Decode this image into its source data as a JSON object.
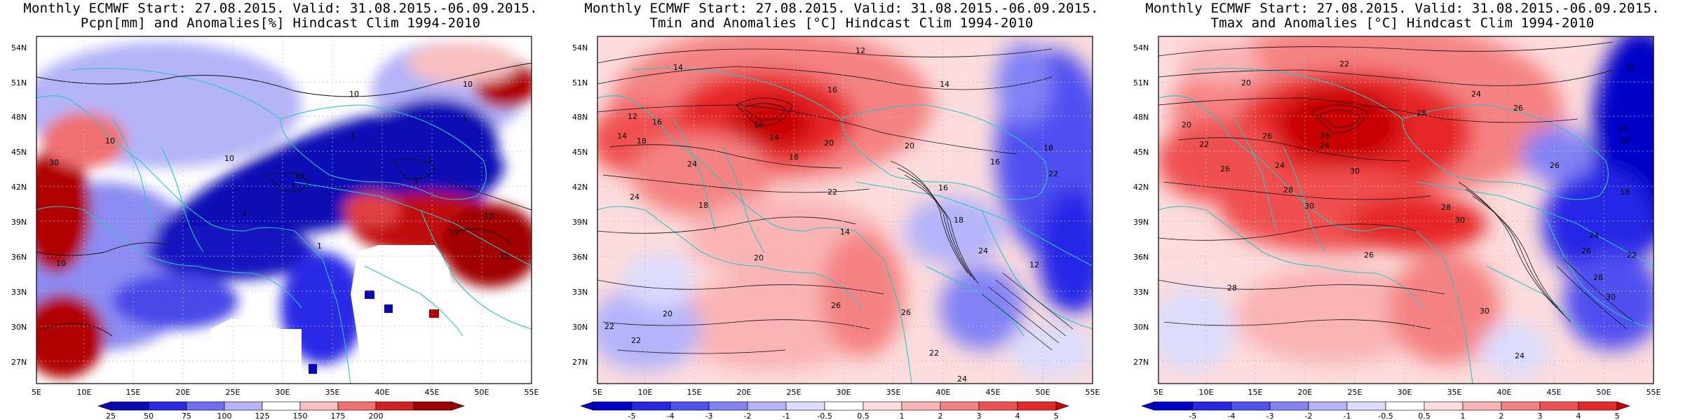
{
  "panels": [
    {
      "title_line1": "Monthly ECMWF Start: 27.08.2015. Valid: 31.08.2015.-06.09.2015.",
      "title_line2": "Pcpn[mm] and Anomalies[%] Hindcast Clim 1994-2010",
      "variable": "precipitation",
      "colorbar_labels": [
        "25",
        "50",
        "75",
        "100",
        "125",
        "150",
        "175",
        "200"
      ],
      "colorbar_colors": [
        "#0a0ab4",
        "#2a2ae6",
        "#6e6ef0",
        "#b4b4f8",
        "#ffffff",
        "#f8c0c0",
        "#f07070",
        "#d42020",
        "#a00000"
      ],
      "contour_labels": [
        "10",
        "30",
        "10",
        "10",
        "10",
        "1",
        "1",
        "1",
        "1",
        "1",
        "10",
        "10",
        "10",
        "10",
        "30",
        "1",
        "1"
      ]
    },
    {
      "title_line1": "Monthly ECMWF Start: 27.08.2015. Valid: 31.08.2015.-06.09.2015.",
      "title_line2": "Tmin and Anomalies [°C] Hindcast Clim 1994-2010",
      "variable": "tmin",
      "colorbar_labels": [
        "-5",
        "-4",
        "-3",
        "-2",
        "-1",
        "-0.5",
        "0.5",
        "1",
        "2",
        "3",
        "4",
        "5"
      ],
      "colorbar_colors": [
        "#0000c8",
        "#2828e6",
        "#5050f0",
        "#8282f5",
        "#b4b4fa",
        "#dcdcfc",
        "#ffffff",
        "#fcdcdc",
        "#fab4b4",
        "#f58282",
        "#f05050",
        "#e62828",
        "#c80000"
      ],
      "contour_labels": [
        "12",
        "14",
        "16",
        "14",
        "12",
        "14",
        "16",
        "18",
        "14",
        "16",
        "18",
        "20",
        "16",
        "18",
        "24",
        "22",
        "20",
        "18",
        "24",
        "26",
        "22",
        "14",
        "16",
        "18",
        "20",
        "22",
        "24",
        "12",
        "22",
        "20",
        "22",
        "24",
        "26"
      ]
    },
    {
      "title_line1": "Monthly ECMWF Start: 27.08.2015. Valid: 31.08.2015.-06.09.2015.",
      "title_line2": "Tmax and Anomalies [°C] Hindcast Clim 1994-2010",
      "variable": "tmax",
      "colorbar_labels": [
        "-5",
        "-4",
        "-3",
        "-2",
        "-1",
        "-0.5",
        "0.5",
        "1",
        "2",
        "3",
        "4",
        "5"
      ],
      "colorbar_colors": [
        "#0000c8",
        "#2828e6",
        "#5050f0",
        "#8282f5",
        "#b4b4fa",
        "#dcdcfc",
        "#ffffff",
        "#fcdcdc",
        "#fab4b4",
        "#f58282",
        "#f05050",
        "#e62828",
        "#c80000"
      ],
      "contour_labels": [
        "20",
        "22",
        "24",
        "26",
        "28",
        "22",
        "20",
        "24",
        "26",
        "28",
        "30",
        "26",
        "24",
        "28",
        "30",
        "22",
        "18",
        "24",
        "26",
        "28",
        "30",
        "24",
        "26",
        "28",
        "30",
        "22",
        "20",
        "28",
        "30",
        "26",
        "24"
      ]
    }
  ],
  "lat_labels": [
    "54N",
    "51N",
    "48N",
    "45N",
    "42N",
    "39N",
    "36N",
    "33N",
    "30N",
    "27N"
  ],
  "lon_labels": [
    "5E",
    "10E",
    "15E",
    "20E",
    "25E",
    "30E",
    "35E",
    "40E",
    "45E",
    "50E",
    "55E"
  ]
}
